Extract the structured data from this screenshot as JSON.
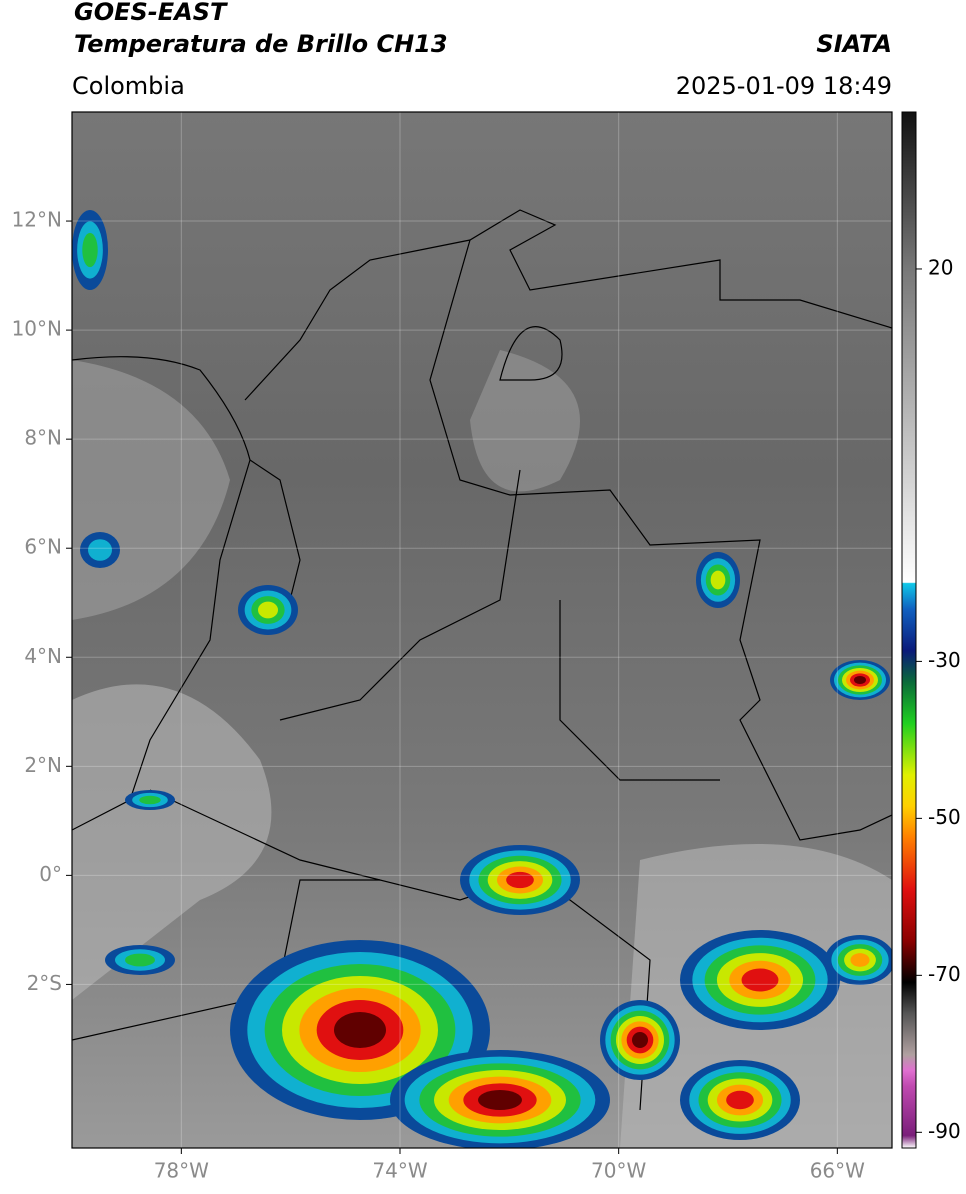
{
  "header": {
    "title": "GOES-EAST",
    "subtitle": "Temperatura de Brillo CH13",
    "region": "Colombia",
    "source": "SIATA",
    "datetime": "2025-01-09 18:49"
  },
  "map": {
    "xlim": [
      -80,
      -65
    ],
    "ylim": [
      -5,
      14
    ],
    "grid": true,
    "xticks": [
      {
        "value": -78,
        "label": "78°W"
      },
      {
        "value": -74,
        "label": "74°W"
      },
      {
        "value": -70,
        "label": "70°W"
      },
      {
        "value": -66,
        "label": "66°W"
      }
    ],
    "yticks": [
      {
        "value": 12,
        "label": "12°N"
      },
      {
        "value": 10,
        "label": "10°N"
      },
      {
        "value": 8,
        "label": "8°N"
      },
      {
        "value": 6,
        "label": "6°N"
      },
      {
        "value": 4,
        "label": "4°N"
      },
      {
        "value": 2,
        "label": "2°N"
      },
      {
        "value": 0,
        "label": "0°"
      },
      {
        "value": -2,
        "label": "2°S"
      }
    ]
  },
  "colorbar": {
    "lim": [
      -92,
      40
    ],
    "ticks": [
      20,
      -30,
      -50,
      -70,
      -90
    ]
  }
}
